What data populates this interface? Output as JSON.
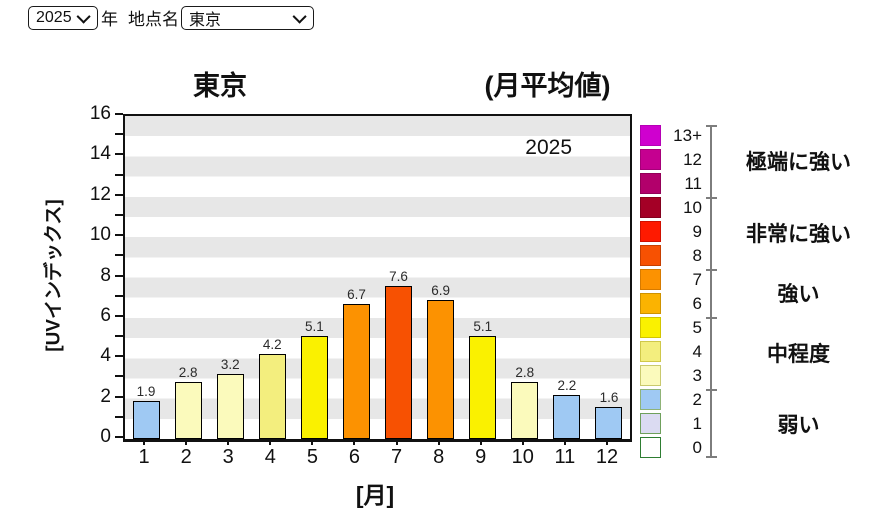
{
  "controls": {
    "year_select": {
      "value": "2025"
    },
    "year_label": "年",
    "station_label": "地点名",
    "station_select": {
      "value": "東京"
    }
  },
  "chart_data": {
    "type": "bar",
    "title": "東京",
    "subtitle": "(月平均値)",
    "annotation": "2025",
    "xlabel": "[月]",
    "ylabel": "[UVインデックス]",
    "categories": [
      1,
      2,
      3,
      4,
      5,
      6,
      7,
      8,
      9,
      10,
      11,
      12
    ],
    "values": [
      1.9,
      2.8,
      3.2,
      4.2,
      5.1,
      6.7,
      7.6,
      6.9,
      5.1,
      2.8,
      2.2,
      1.6
    ],
    "ylim": [
      0,
      16
    ],
    "ytick_interval": 2,
    "grid": "horizontal-stripes",
    "stripe_color": "#e7e7e7",
    "bar_border_color": "#000000",
    "bar_colors": [
      "#9FC9F3",
      "#FBFABC",
      "#FBFABC",
      "#F3EE7E",
      "#FAF100",
      "#FC9201",
      "#F75102",
      "#FC9201",
      "#FAF100",
      "#FBFABC",
      "#9FC9F3",
      "#9FC9F3"
    ],
    "legend": {
      "position": "right",
      "items": [
        {
          "level": "13+",
          "color": "#CF00CF",
          "border": "#B500B5"
        },
        {
          "level": "12",
          "color": "#C50090",
          "border": "#A60079"
        },
        {
          "level": "11",
          "color": "#B2006B",
          "border": "#930058"
        },
        {
          "level": "10",
          "color": "#A40026",
          "border": "#83001E"
        },
        {
          "level": "9",
          "color": "#FE1A00",
          "border": "#D01000"
        },
        {
          "level": "8",
          "color": "#F75102",
          "border": "#C63E00"
        },
        {
          "level": "7",
          "color": "#FC9201",
          "border": "#D67A00"
        },
        {
          "level": "6",
          "color": "#FBB301",
          "border": "#CE9200"
        },
        {
          "level": "5",
          "color": "#FAF100",
          "border": "#D2C500"
        },
        {
          "level": "4",
          "color": "#F3EE7E",
          "border": "#CFC84A"
        },
        {
          "level": "3",
          "color": "#FBFABC",
          "border": "#C9C96E"
        },
        {
          "level": "2",
          "color": "#9FC9F3",
          "border": "#8FB377"
        },
        {
          "level": "1",
          "color": "#DBDBF2",
          "border": "#6FA05C"
        },
        {
          "level": "0",
          "color": "#FFFFFF",
          "border": "#2E7D32"
        }
      ],
      "groups": [
        {
          "label": "極端に強い",
          "levels": [
            "11",
            "12",
            "13+"
          ],
          "start": 0,
          "count": 3
        },
        {
          "label": "非常に強い",
          "levels": [
            "8",
            "9",
            "10"
          ],
          "start": 3,
          "count": 3
        },
        {
          "label": "強い",
          "levels": [
            "6",
            "7"
          ],
          "start": 6,
          "count": 2
        },
        {
          "label": "中程度",
          "levels": [
            "3",
            "4",
            "5"
          ],
          "start": 8,
          "count": 3
        },
        {
          "label": "弱い",
          "levels": [
            "0",
            "1",
            "2"
          ],
          "start": 11,
          "count": 3
        }
      ]
    }
  }
}
